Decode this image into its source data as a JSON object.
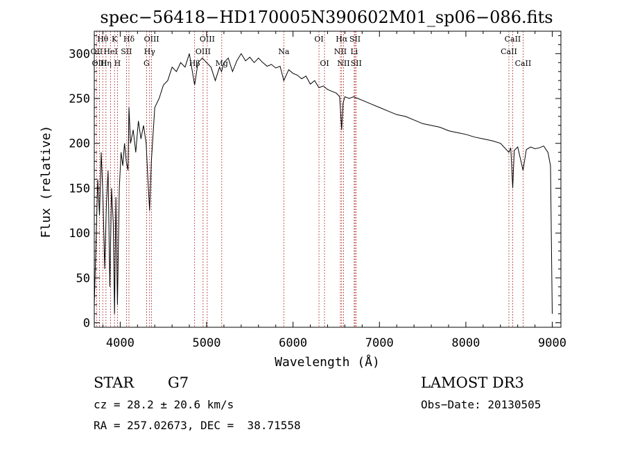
{
  "chart_data": {
    "type": "line",
    "title": "spec−56418−HD170005N390602M01_sp06−086.fits",
    "xlabel": "Wavelength (Å)",
    "ylabel": "Flux (relative)",
    "xlim": [
      3700,
      9100
    ],
    "ylim": [
      -5,
      325
    ],
    "xticks": [
      4000,
      5000,
      6000,
      7000,
      8000,
      9000
    ],
    "yticks": [
      0,
      50,
      100,
      150,
      200,
      250,
      300
    ],
    "grid": false,
    "series": [
      {
        "name": "spectrum",
        "points": [
          [
            3700,
            20
          ],
          [
            3720,
            90
          ],
          [
            3740,
            160
          ],
          [
            3760,
            120
          ],
          [
            3780,
            190
          ],
          [
            3800,
            140
          ],
          [
            3820,
            60
          ],
          [
            3840,
            130
          ],
          [
            3860,
            170
          ],
          [
            3880,
            40
          ],
          [
            3900,
            150
          ],
          [
            3920,
            110
          ],
          [
            3934,
            10
          ],
          [
            3950,
            140
          ],
          [
            3968,
            20
          ],
          [
            3990,
            150
          ],
          [
            4010,
            190
          ],
          [
            4030,
            175
          ],
          [
            4050,
            200
          ],
          [
            4070,
            180
          ],
          [
            4090,
            170
          ],
          [
            4101,
            240
          ],
          [
            4120,
            200
          ],
          [
            4150,
            215
          ],
          [
            4180,
            190
          ],
          [
            4210,
            225
          ],
          [
            4240,
            205
          ],
          [
            4270,
            220
          ],
          [
            4300,
            200
          ],
          [
            4320,
            160
          ],
          [
            4340,
            125
          ],
          [
            4360,
            180
          ],
          [
            4400,
            240
          ],
          [
            4450,
            250
          ],
          [
            4500,
            265
          ],
          [
            4550,
            270
          ],
          [
            4600,
            285
          ],
          [
            4650,
            280
          ],
          [
            4700,
            290
          ],
          [
            4750,
            285
          ],
          [
            4800,
            300
          ],
          [
            4861,
            265
          ],
          [
            4900,
            290
          ],
          [
            4950,
            295
          ],
          [
            5000,
            290
          ],
          [
            5050,
            285
          ],
          [
            5100,
            270
          ],
          [
            5150,
            285
          ],
          [
            5172,
            280
          ],
          [
            5200,
            290
          ],
          [
            5250,
            295
          ],
          [
            5300,
            280
          ],
          [
            5350,
            292
          ],
          [
            5400,
            300
          ],
          [
            5450,
            292
          ],
          [
            5500,
            296
          ],
          [
            5550,
            290
          ],
          [
            5600,
            295
          ],
          [
            5650,
            290
          ],
          [
            5700,
            286
          ],
          [
            5750,
            288
          ],
          [
            5800,
            284
          ],
          [
            5850,
            286
          ],
          [
            5893,
            270
          ],
          [
            5950,
            282
          ],
          [
            6000,
            278
          ],
          [
            6050,
            276
          ],
          [
            6100,
            272
          ],
          [
            6150,
            275
          ],
          [
            6200,
            266
          ],
          [
            6250,
            270
          ],
          [
            6300,
            262
          ],
          [
            6350,
            264
          ],
          [
            6400,
            260
          ],
          [
            6450,
            258
          ],
          [
            6500,
            256
          ],
          [
            6540,
            252
          ],
          [
            6563,
            215
          ],
          [
            6580,
            245
          ],
          [
            6600,
            252
          ],
          [
            6650,
            250
          ],
          [
            6700,
            252
          ],
          [
            6750,
            250
          ],
          [
            6800,
            248
          ],
          [
            6900,
            244
          ],
          [
            7000,
            240
          ],
          [
            7100,
            236
          ],
          [
            7200,
            232
          ],
          [
            7300,
            230
          ],
          [
            7400,
            226
          ],
          [
            7500,
            222
          ],
          [
            7600,
            220
          ],
          [
            7700,
            218
          ],
          [
            7800,
            214
          ],
          [
            7900,
            212
          ],
          [
            8000,
            210
          ],
          [
            8100,
            207
          ],
          [
            8200,
            205
          ],
          [
            8300,
            203
          ],
          [
            8400,
            200
          ],
          [
            8498,
            190
          ],
          [
            8520,
            195
          ],
          [
            8542,
            150
          ],
          [
            8560,
            192
          ],
          [
            8600,
            196
          ],
          [
            8662,
            170
          ],
          [
            8700,
            193
          ],
          [
            8750,
            196
          ],
          [
            8800,
            194
          ],
          [
            8850,
            195
          ],
          [
            8900,
            197
          ],
          [
            8950,
            190
          ],
          [
            8980,
            175
          ],
          [
            9000,
            10
          ]
        ]
      }
    ],
    "lines": [
      {
        "label": "Hθ",
        "x": 3798,
        "row": 0
      },
      {
        "label": "OII",
        "x": 3727,
        "row": 1
      },
      {
        "label": "OIII",
        "x": 3760,
        "row": 2
      },
      {
        "label": "Hη",
        "x": 3835,
        "row": 2
      },
      {
        "label": "K",
        "x": 3934,
        "row": 0
      },
      {
        "label": "HeI",
        "x": 3889,
        "row": 1
      },
      {
        "label": "H",
        "x": 3968,
        "row": 2
      },
      {
        "label": "SII",
        "x": 4072,
        "row": 1
      },
      {
        "label": "Hδ",
        "x": 4101,
        "row": 0
      },
      {
        "label": "OIII",
        "x": 4363,
        "row": 0
      },
      {
        "label": "Hγ",
        "x": 4340,
        "row": 1
      },
      {
        "label": "G",
        "x": 4305,
        "row": 2
      },
      {
        "label": "OIII",
        "x": 5007,
        "row": 0
      },
      {
        "label": "OIII",
        "x": 4959,
        "row": 1
      },
      {
        "label": "Hβ",
        "x": 4861,
        "row": 2
      },
      {
        "label": "Mg",
        "x": 5175,
        "row": 2
      },
      {
        "label": "Na",
        "x": 5893,
        "row": 1
      },
      {
        "label": "OI",
        "x": 6300,
        "row": 0
      },
      {
        "label": "OI",
        "x": 6364,
        "row": 2
      },
      {
        "label": "Hα",
        "x": 6563,
        "row": 0
      },
      {
        "label": "NII",
        "x": 6548,
        "row": 1
      },
      {
        "label": "NII",
        "x": 6584,
        "row": 2
      },
      {
        "label": "SII",
        "x": 6717,
        "row": 0
      },
      {
        "label": "Li",
        "x": 6708,
        "row": 1
      },
      {
        "label": "SII",
        "x": 6731,
        "row": 2
      },
      {
        "label": "CaII",
        "x": 8542,
        "row": 0
      },
      {
        "label": "CaII",
        "x": 8498,
        "row": 1
      },
      {
        "label": "CaII",
        "x": 8662,
        "row": 2
      }
    ]
  },
  "info": {
    "object_class": "STAR",
    "subclass": "G7",
    "cz": "cz = 28.2 ± 20.6 km/s",
    "coords": "RA = 257.02673, DEC =  38.71558",
    "survey": "LAMOST DR3",
    "obs_date": "Obs−Date: 20130505"
  }
}
